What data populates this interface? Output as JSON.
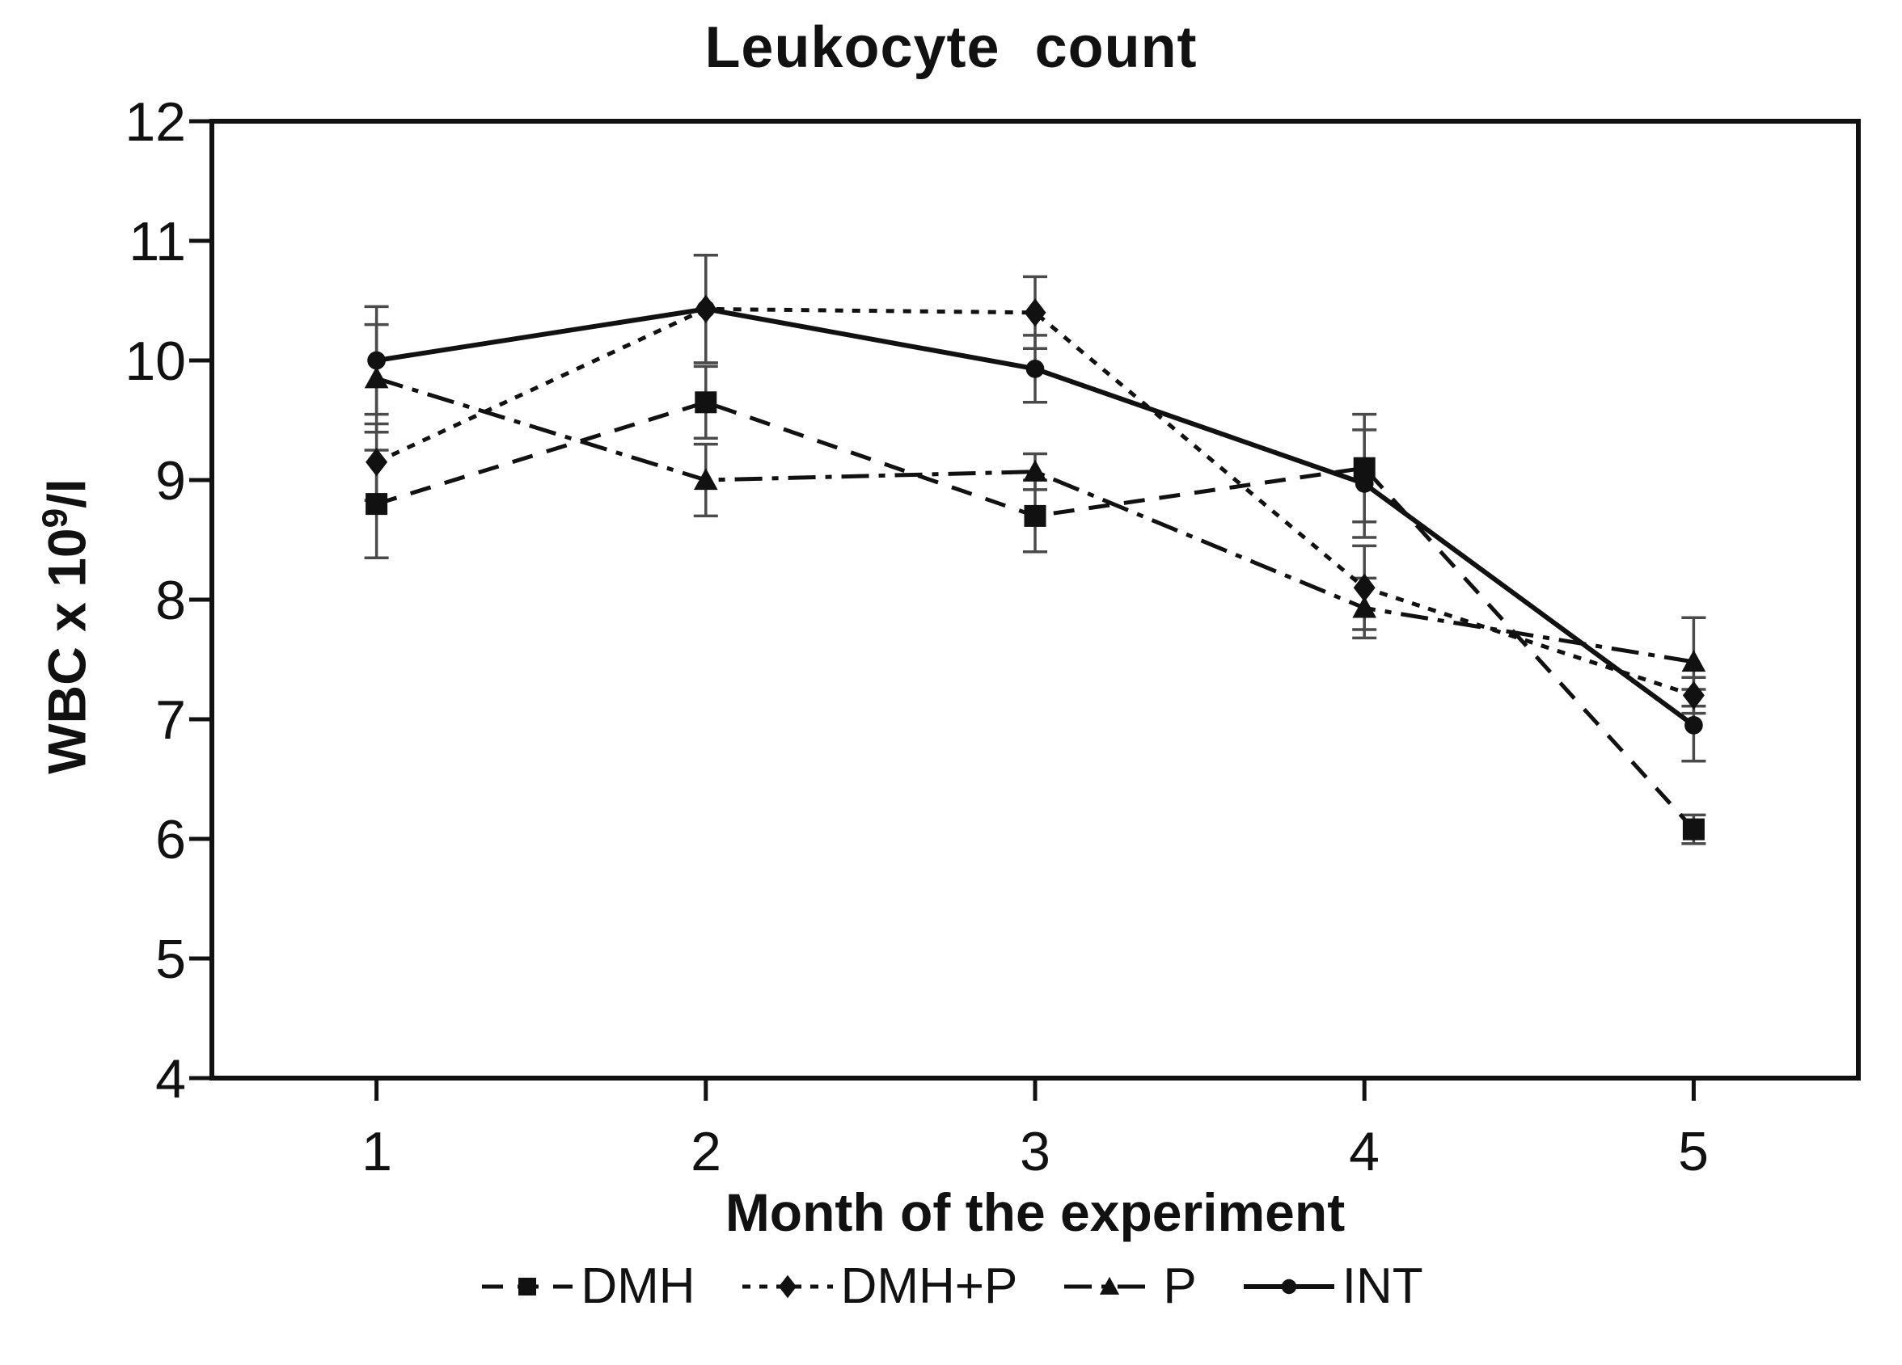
{
  "chart_data": {
    "type": "line",
    "title": "Leukocyte count",
    "xlabel": "Month of the experiment",
    "ylabel": {
      "base": "WBC x 10",
      "sup": "9",
      "rest": "/l"
    },
    "x": [
      1,
      2,
      3,
      4,
      5
    ],
    "x_ticks": [
      "1",
      "2",
      "3",
      "4",
      "5"
    ],
    "y_ticks": [
      "4",
      "5",
      "6",
      "7",
      "8",
      "9",
      "10",
      "11",
      "12"
    ],
    "ylim": [
      4,
      12
    ],
    "grid": false,
    "legend_position": "bottom",
    "ink_color": "#111111",
    "error_bar_color": "#4a4a4a",
    "series": [
      {
        "name": "DMH",
        "marker": "square",
        "line": "dashed",
        "values": [
          8.8,
          9.65,
          8.7,
          9.1,
          6.08
        ],
        "errors": [
          0.45,
          0.3,
          0.3,
          0.45,
          0.12
        ]
      },
      {
        "name": "DMH+P",
        "marker": "diamond",
        "line": "dotted",
        "values": [
          9.15,
          10.43,
          10.4,
          8.1,
          7.2
        ],
        "errors": [
          0.32,
          0.45,
          0.3,
          0.35,
          0.15
        ]
      },
      {
        "name": "P",
        "marker": "triangle",
        "line": "dashdot",
        "values": [
          9.85,
          9.0,
          9.07,
          7.93,
          7.48
        ],
        "errors": [
          0.45,
          0.3,
          0.15,
          0.25,
          0.37
        ]
      },
      {
        "name": "INT",
        "marker": "circle",
        "line": "solid",
        "values": [
          10.0,
          10.43,
          9.93,
          8.97,
          6.95
        ],
        "errors": [
          0.45,
          0.45,
          0.28,
          0.45,
          0.3
        ]
      }
    ]
  }
}
